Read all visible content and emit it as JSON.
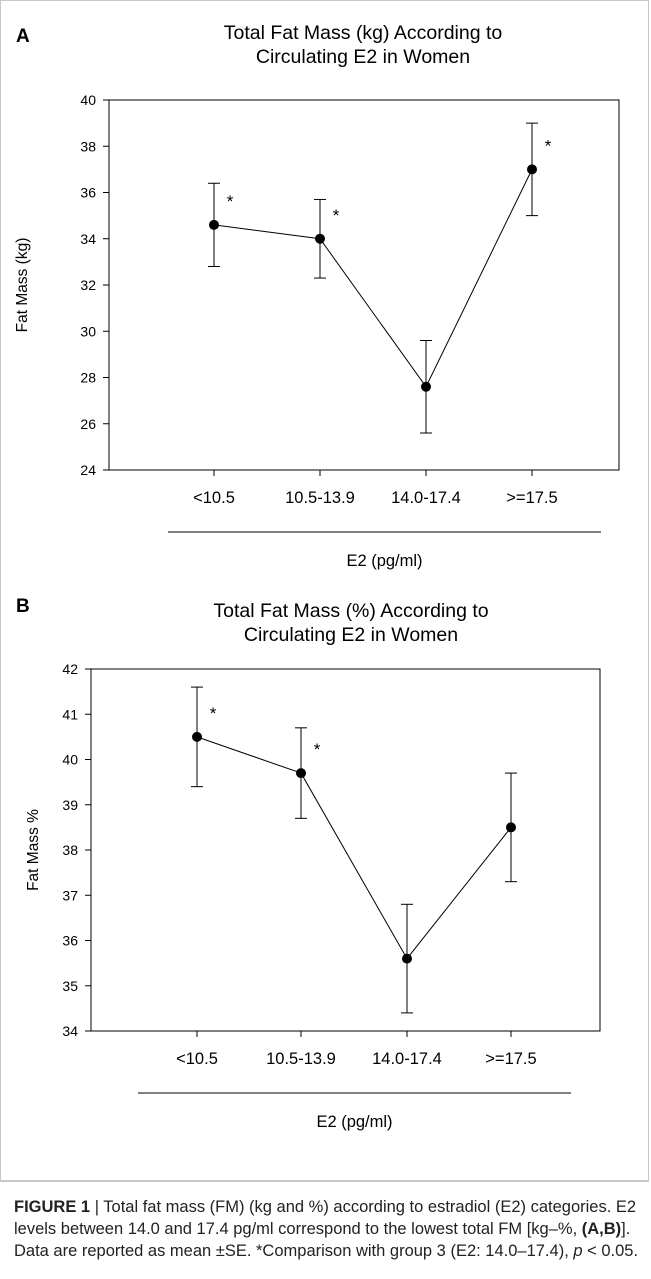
{
  "chart_data": [
    {
      "panel": "A",
      "type": "line",
      "title_lines": [
        "Total Fat Mass (kg) According to",
        "Circulating E2 in Women"
      ],
      "xlabel": "E2 (pg/ml)",
      "ylabel": "Fat Mass  (kg)",
      "categories": [
        "<10.5",
        "10.5-13.9",
        "14.0-17.4",
        ">=17.5"
      ],
      "values": [
        34.6,
        34.0,
        27.6,
        37.0
      ],
      "error_upper": [
        36.4,
        35.7,
        29.6,
        39.0
      ],
      "error_lower": [
        32.8,
        32.3,
        25.6,
        35.0
      ],
      "significant": [
        "*",
        "*",
        "",
        "*"
      ],
      "ylim": [
        24,
        40
      ],
      "yticks": [
        "24",
        "26",
        "28",
        "30",
        "32",
        "34",
        "36",
        "38",
        "40"
      ]
    },
    {
      "panel": "B",
      "type": "line",
      "title_lines": [
        "Total Fat Mass (%) According to",
        "Circulating E2 in Women"
      ],
      "xlabel": "E2 (pg/ml)",
      "ylabel": "Fat Mass %",
      "categories": [
        "<10.5",
        "10.5-13.9",
        "14.0-17.4",
        ">=17.5"
      ],
      "values": [
        40.5,
        39.7,
        35.6,
        38.5
      ],
      "error_upper": [
        41.6,
        40.7,
        36.8,
        39.7
      ],
      "error_lower": [
        39.4,
        38.7,
        34.4,
        37.3
      ],
      "significant": [
        "*",
        "*",
        "",
        ""
      ],
      "ylim": [
        34,
        42
      ],
      "yticks": [
        "34",
        "35",
        "36",
        "37",
        "38",
        "39",
        "40",
        "41",
        "42"
      ]
    }
  ],
  "caption": {
    "label": "FIGURE 1",
    "sep": " | ",
    "t1": "Total fat mass (FM) (kg and %) according to estradiol (E2) categories. E2 levels between 14.0 and 17.4 pg/ml correspond to the lowest total FM [kg–%, ",
    "t2": "(A,B)",
    "t3": "]. Data are reported as mean ±SE. *Comparison with group 3 (E2: 14.0–17.4), ",
    "t4": "p",
    "t5": " < 0.05."
  }
}
